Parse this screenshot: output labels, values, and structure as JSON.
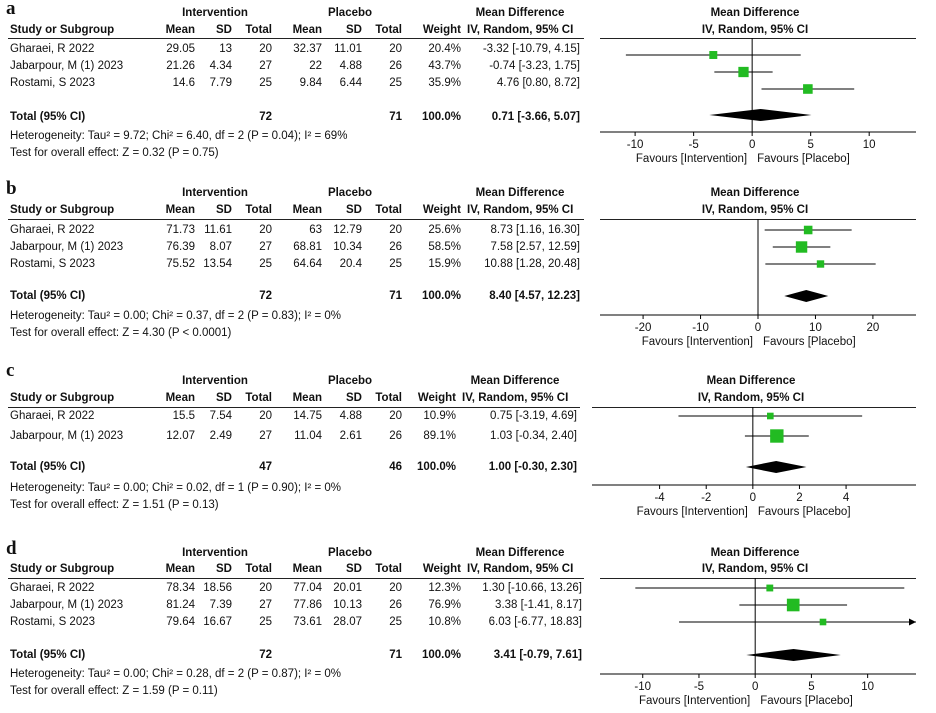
{
  "headers": {
    "study": "Study or Subgroup",
    "intervention": "Intervention",
    "placebo": "Placebo",
    "mean": "Mean",
    "sd": "SD",
    "total": "Total",
    "weight": "Weight",
    "md": "Mean Difference",
    "md_sub": "IV, Random, 95% CI"
  },
  "colors": {
    "marker": "#22bb22",
    "diamond": "#000000",
    "line": "#000000"
  },
  "chart_data": [
    {
      "type": "forest",
      "letter": "a",
      "studies": [
        {
          "name": "Gharaei, R 2022",
          "i_mean": "29.05",
          "i_sd": "13",
          "i_total": "20",
          "p_mean": "32.37",
          "p_sd": "11.01",
          "p_total": "20",
          "weight": "20.4%",
          "ci_text": "-3.32 [-10.79, 4.15]",
          "est": -3.32,
          "lo": -10.79,
          "hi": 4.15,
          "w": 20.4
        },
        {
          "name": "Jabarpour, M (1) 2023",
          "i_mean": "21.26",
          "i_sd": "4.34",
          "i_total": "27",
          "p_mean": "22",
          "p_sd": "4.88",
          "p_total": "26",
          "weight": "43.7%",
          "ci_text": "-0.74 [-3.23, 1.75]",
          "est": -0.74,
          "lo": -3.23,
          "hi": 1.75,
          "w": 43.7
        },
        {
          "name": "Rostami, S 2023",
          "i_mean": "14.6",
          "i_sd": "7.79",
          "i_total": "25",
          "p_mean": "9.84",
          "p_sd": "6.44",
          "p_total": "25",
          "weight": "35.9%",
          "ci_text": "4.76 [0.80, 8.72]",
          "est": 4.76,
          "lo": 0.8,
          "hi": 8.72,
          "w": 35.9
        }
      ],
      "total": {
        "label": "Total (95% CI)",
        "i_total": "72",
        "p_total": "71",
        "weight": "100.0%",
        "ci_text": "0.71 [-3.66, 5.07]",
        "est": 0.71,
        "lo": -3.66,
        "hi": 5.07
      },
      "heterogeneity": "Heterogeneity: Tau² = 9.72; Chi² = 6.40, df = 2 (P = 0.04); I² = 69%",
      "overall": "Test for overall effect: Z = 0.32 (P = 0.75)",
      "axis": {
        "min": -13,
        "max": 14,
        "ticks": [
          "-10",
          "-5",
          "0",
          "5",
          "10"
        ],
        "tick_values": [
          -10,
          -5,
          0,
          5,
          10
        ]
      },
      "favours_left": "Favours [Intervention]",
      "favours_right": "Favours [Placebo]"
    },
    {
      "type": "forest",
      "letter": "b",
      "studies": [
        {
          "name": "Gharaei, R 2022",
          "i_mean": "71.73",
          "i_sd": "11.61",
          "i_total": "20",
          "p_mean": "63",
          "p_sd": "12.79",
          "p_total": "20",
          "weight": "25.6%",
          "ci_text": "8.73 [1.16, 16.30]",
          "est": 8.73,
          "lo": 1.16,
          "hi": 16.3,
          "w": 25.6
        },
        {
          "name": "Jabarpour, M (1) 2023",
          "i_mean": "76.39",
          "i_sd": "8.07",
          "i_total": "27",
          "p_mean": "68.81",
          "p_sd": "10.34",
          "p_total": "26",
          "weight": "58.5%",
          "ci_text": "7.58 [2.57, 12.59]",
          "est": 7.58,
          "lo": 2.57,
          "hi": 12.59,
          "w": 58.5
        },
        {
          "name": "Rostami, S 2023",
          "i_mean": "75.52",
          "i_sd": "13.54",
          "i_total": "25",
          "p_mean": "64.64",
          "p_sd": "20.4",
          "p_total": "25",
          "weight": "15.9%",
          "ci_text": "10.88 [1.28, 20.48]",
          "est": 10.88,
          "lo": 1.28,
          "hi": 20.48,
          "w": 15.9
        }
      ],
      "total": {
        "label": "Total (95% CI)",
        "i_total": "72",
        "p_total": "71",
        "weight": "100.0%",
        "ci_text": "8.40 [4.57, 12.23]",
        "est": 8.4,
        "lo": 4.57,
        "hi": 12.23
      },
      "heterogeneity": "Heterogeneity: Tau² = 0.00; Chi² = 0.37, df = 2 (P = 0.83); I² = 0%",
      "overall": "Test for overall effect: Z = 4.30 (P < 0.0001)",
      "axis": {
        "min": -27.5,
        "max": 27.5,
        "ticks": [
          "-20",
          "-10",
          "0",
          "10",
          "20"
        ],
        "tick_values": [
          -20,
          -10,
          0,
          10,
          20
        ]
      },
      "favours_left": "Favours [Intervention]",
      "favours_right": "Favours [Placebo]"
    },
    {
      "type": "forest",
      "letter": "c",
      "studies": [
        {
          "name": "Gharaei, R 2022",
          "i_mean": "15.5",
          "i_sd": "7.54",
          "i_total": "20",
          "p_mean": "14.75",
          "p_sd": "4.88",
          "p_total": "20",
          "weight": "10.9%",
          "ci_text": "0.75 [-3.19, 4.69]",
          "est": 0.75,
          "lo": -3.19,
          "hi": 4.69,
          "w": 10.9
        },
        {
          "name": "Jabarpour, M (1) 2023",
          "i_mean": "12.07",
          "i_sd": "2.49",
          "i_total": "27",
          "p_mean": "11.04",
          "p_sd": "2.61",
          "p_total": "26",
          "weight": "89.1%",
          "ci_text": "1.03 [-0.34, 2.40]",
          "est": 1.03,
          "lo": -0.34,
          "hi": 2.4,
          "w": 89.1
        }
      ],
      "total": {
        "label": "Total (95% CI)",
        "i_total": "47",
        "p_total": "46",
        "weight": "100.0%",
        "ci_text": "1.00 [-0.30, 2.30]",
        "est": 1.0,
        "lo": -0.3,
        "hi": 2.3
      },
      "heterogeneity": "Heterogeneity: Tau² = 0.00; Chi² = 0.02, df = 1 (P = 0.90); I² = 0%",
      "overall": "Test for overall effect: Z = 1.51 (P = 0.13)",
      "axis": {
        "min": -6.9,
        "max": 7.0,
        "ticks": [
          "-4",
          "-2",
          "0",
          "2",
          "4"
        ],
        "tick_values": [
          -4,
          -2,
          0,
          2,
          4
        ]
      },
      "favours_left": "Favours [Intervention]",
      "favours_right": "Favours [Placebo]"
    },
    {
      "type": "forest",
      "letter": "d",
      "studies": [
        {
          "name": "Gharaei, R 2022",
          "i_mean": "78.34",
          "i_sd": "18.56",
          "i_total": "20",
          "p_mean": "77.04",
          "p_sd": "20.01",
          "p_total": "20",
          "weight": "12.3%",
          "ci_text": "1.30 [-10.66, 13.26]",
          "est": 1.3,
          "lo": -10.66,
          "hi": 13.26,
          "w": 12.3
        },
        {
          "name": "Jabarpour, M (1) 2023",
          "i_mean": "81.24",
          "i_sd": "7.39",
          "i_total": "27",
          "p_mean": "77.86",
          "p_sd": "10.13",
          "p_total": "26",
          "weight": "76.9%",
          "ci_text": "3.38 [-1.41, 8.17]",
          "est": 3.38,
          "lo": -1.41,
          "hi": 8.17,
          "w": 76.9
        },
        {
          "name": "Rostami, S 2023",
          "i_mean": "79.64",
          "i_sd": "16.67",
          "i_total": "25",
          "p_mean": "73.61",
          "p_sd": "28.07",
          "p_total": "25",
          "weight": "10.8%",
          "ci_text": "6.03 [-6.77, 18.83]",
          "est": 6.03,
          "lo": -6.77,
          "hi": 18.83,
          "w": 10.8
        }
      ],
      "total": {
        "label": "Total (95% CI)",
        "i_total": "72",
        "p_total": "71",
        "weight": "100.0%",
        "ci_text": "3.41 [-0.79, 7.61]",
        "est": 3.41,
        "lo": -0.79,
        "hi": 7.61
      },
      "heterogeneity": "Heterogeneity: Tau² = 0.00; Chi² = 0.28, df = 2 (P = 0.87); I² = 0%",
      "overall": "Test for overall effect: Z = 1.59 (P = 0.11)",
      "axis": {
        "min": -13.8,
        "max": 14.3,
        "ticks": [
          "-10",
          "-5",
          "0",
          "5",
          "10"
        ],
        "tick_values": [
          -10,
          -5,
          0,
          5,
          10
        ]
      },
      "favours_left": "Favours [Intervention]",
      "favours_right": "Favours [Placebo]"
    }
  ]
}
